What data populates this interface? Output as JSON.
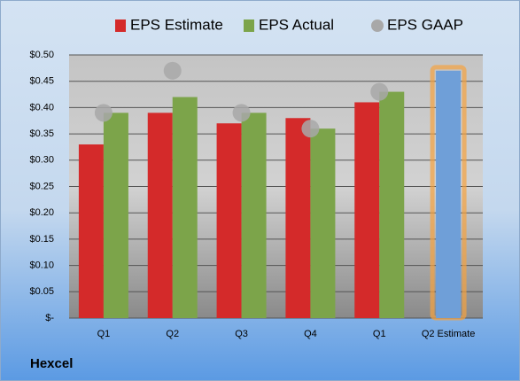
{
  "chart_data": {
    "type": "bar",
    "categories": [
      "Q1",
      "Q2",
      "Q3",
      "Q4",
      "Q1",
      "Q2 Estimate"
    ],
    "series": [
      {
        "name": "EPS Estimate",
        "type": "bar",
        "color": "#d42a2a",
        "values": [
          0.33,
          0.39,
          0.37,
          0.38,
          0.41,
          0.47
        ],
        "highlight": {
          "index": 5,
          "color": "#6f9fd8",
          "glow": "#f5a340"
        }
      },
      {
        "name": "EPS Actual",
        "type": "bar",
        "color": "#7ca44a",
        "values": [
          0.39,
          0.42,
          0.39,
          0.36,
          0.43,
          null
        ]
      },
      {
        "name": "EPS GAAP",
        "type": "scatter",
        "color": "#a8a8a8",
        "values": [
          0.39,
          0.47,
          0.39,
          0.36,
          0.43,
          null
        ]
      }
    ],
    "ylim": [
      0,
      0.5
    ],
    "yticks": [
      {
        "value": 0,
        "label": "$-"
      },
      {
        "value": 0.05,
        "label": "$0.05"
      },
      {
        "value": 0.1,
        "label": "$0.10"
      },
      {
        "value": 0.15,
        "label": "$0.15"
      },
      {
        "value": 0.2,
        "label": "$0.20"
      },
      {
        "value": 0.25,
        "label": "$0.25"
      },
      {
        "value": 0.3,
        "label": "$0.30"
      },
      {
        "value": 0.35,
        "label": "$0.35"
      },
      {
        "value": 0.4,
        "label": "$0.40"
      },
      {
        "value": 0.45,
        "label": "$0.45"
      },
      {
        "value": 0.5,
        "label": "$0.50"
      }
    ],
    "grid": true,
    "legend": "top",
    "company": "Hexcel"
  }
}
